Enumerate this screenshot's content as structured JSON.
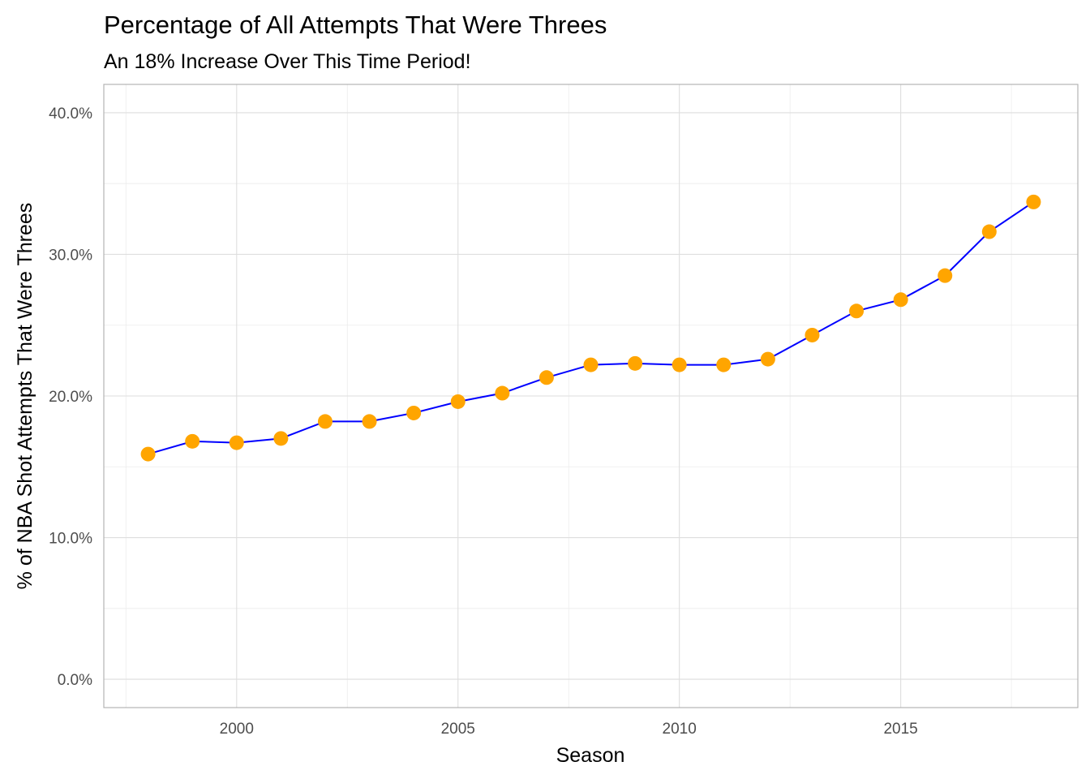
{
  "chart_data": {
    "type": "line",
    "title": "Percentage of All Attempts That Were Threes",
    "subtitle": "An 18% Increase Over This Time Period!",
    "xlabel": "Season",
    "ylabel": "% of NBA Shot Attempts That Were Threes",
    "x": [
      1998,
      1999,
      2000,
      2001,
      2002,
      2003,
      2004,
      2005,
      2006,
      2007,
      2008,
      2009,
      2010,
      2011,
      2012,
      2013,
      2014,
      2015,
      2016,
      2017,
      2018
    ],
    "series": [
      {
        "values": [
          0.159,
          0.168,
          0.167,
          0.17,
          0.182,
          0.182,
          0.188,
          0.196,
          0.202,
          0.213,
          0.222,
          0.223,
          0.222,
          0.222,
          0.226,
          0.243,
          0.26,
          0.268,
          0.285,
          0.316,
          0.337
        ],
        "line_color": "#0000ff",
        "point_color": "#ffa500"
      }
    ],
    "xlim": [
      1997,
      2019
    ],
    "ylim": [
      -0.02,
      0.42
    ],
    "x_ticks": [
      2000,
      2005,
      2010,
      2015
    ],
    "x_tick_labels": [
      "2000",
      "2005",
      "2010",
      "2015"
    ],
    "y_ticks": [
      0.0,
      0.1,
      0.2,
      0.3,
      0.4
    ],
    "y_tick_labels": [
      "0.0%",
      "10.0%",
      "20.0%",
      "30.0%",
      "40.0%"
    ],
    "grid": true,
    "legend": "none"
  }
}
